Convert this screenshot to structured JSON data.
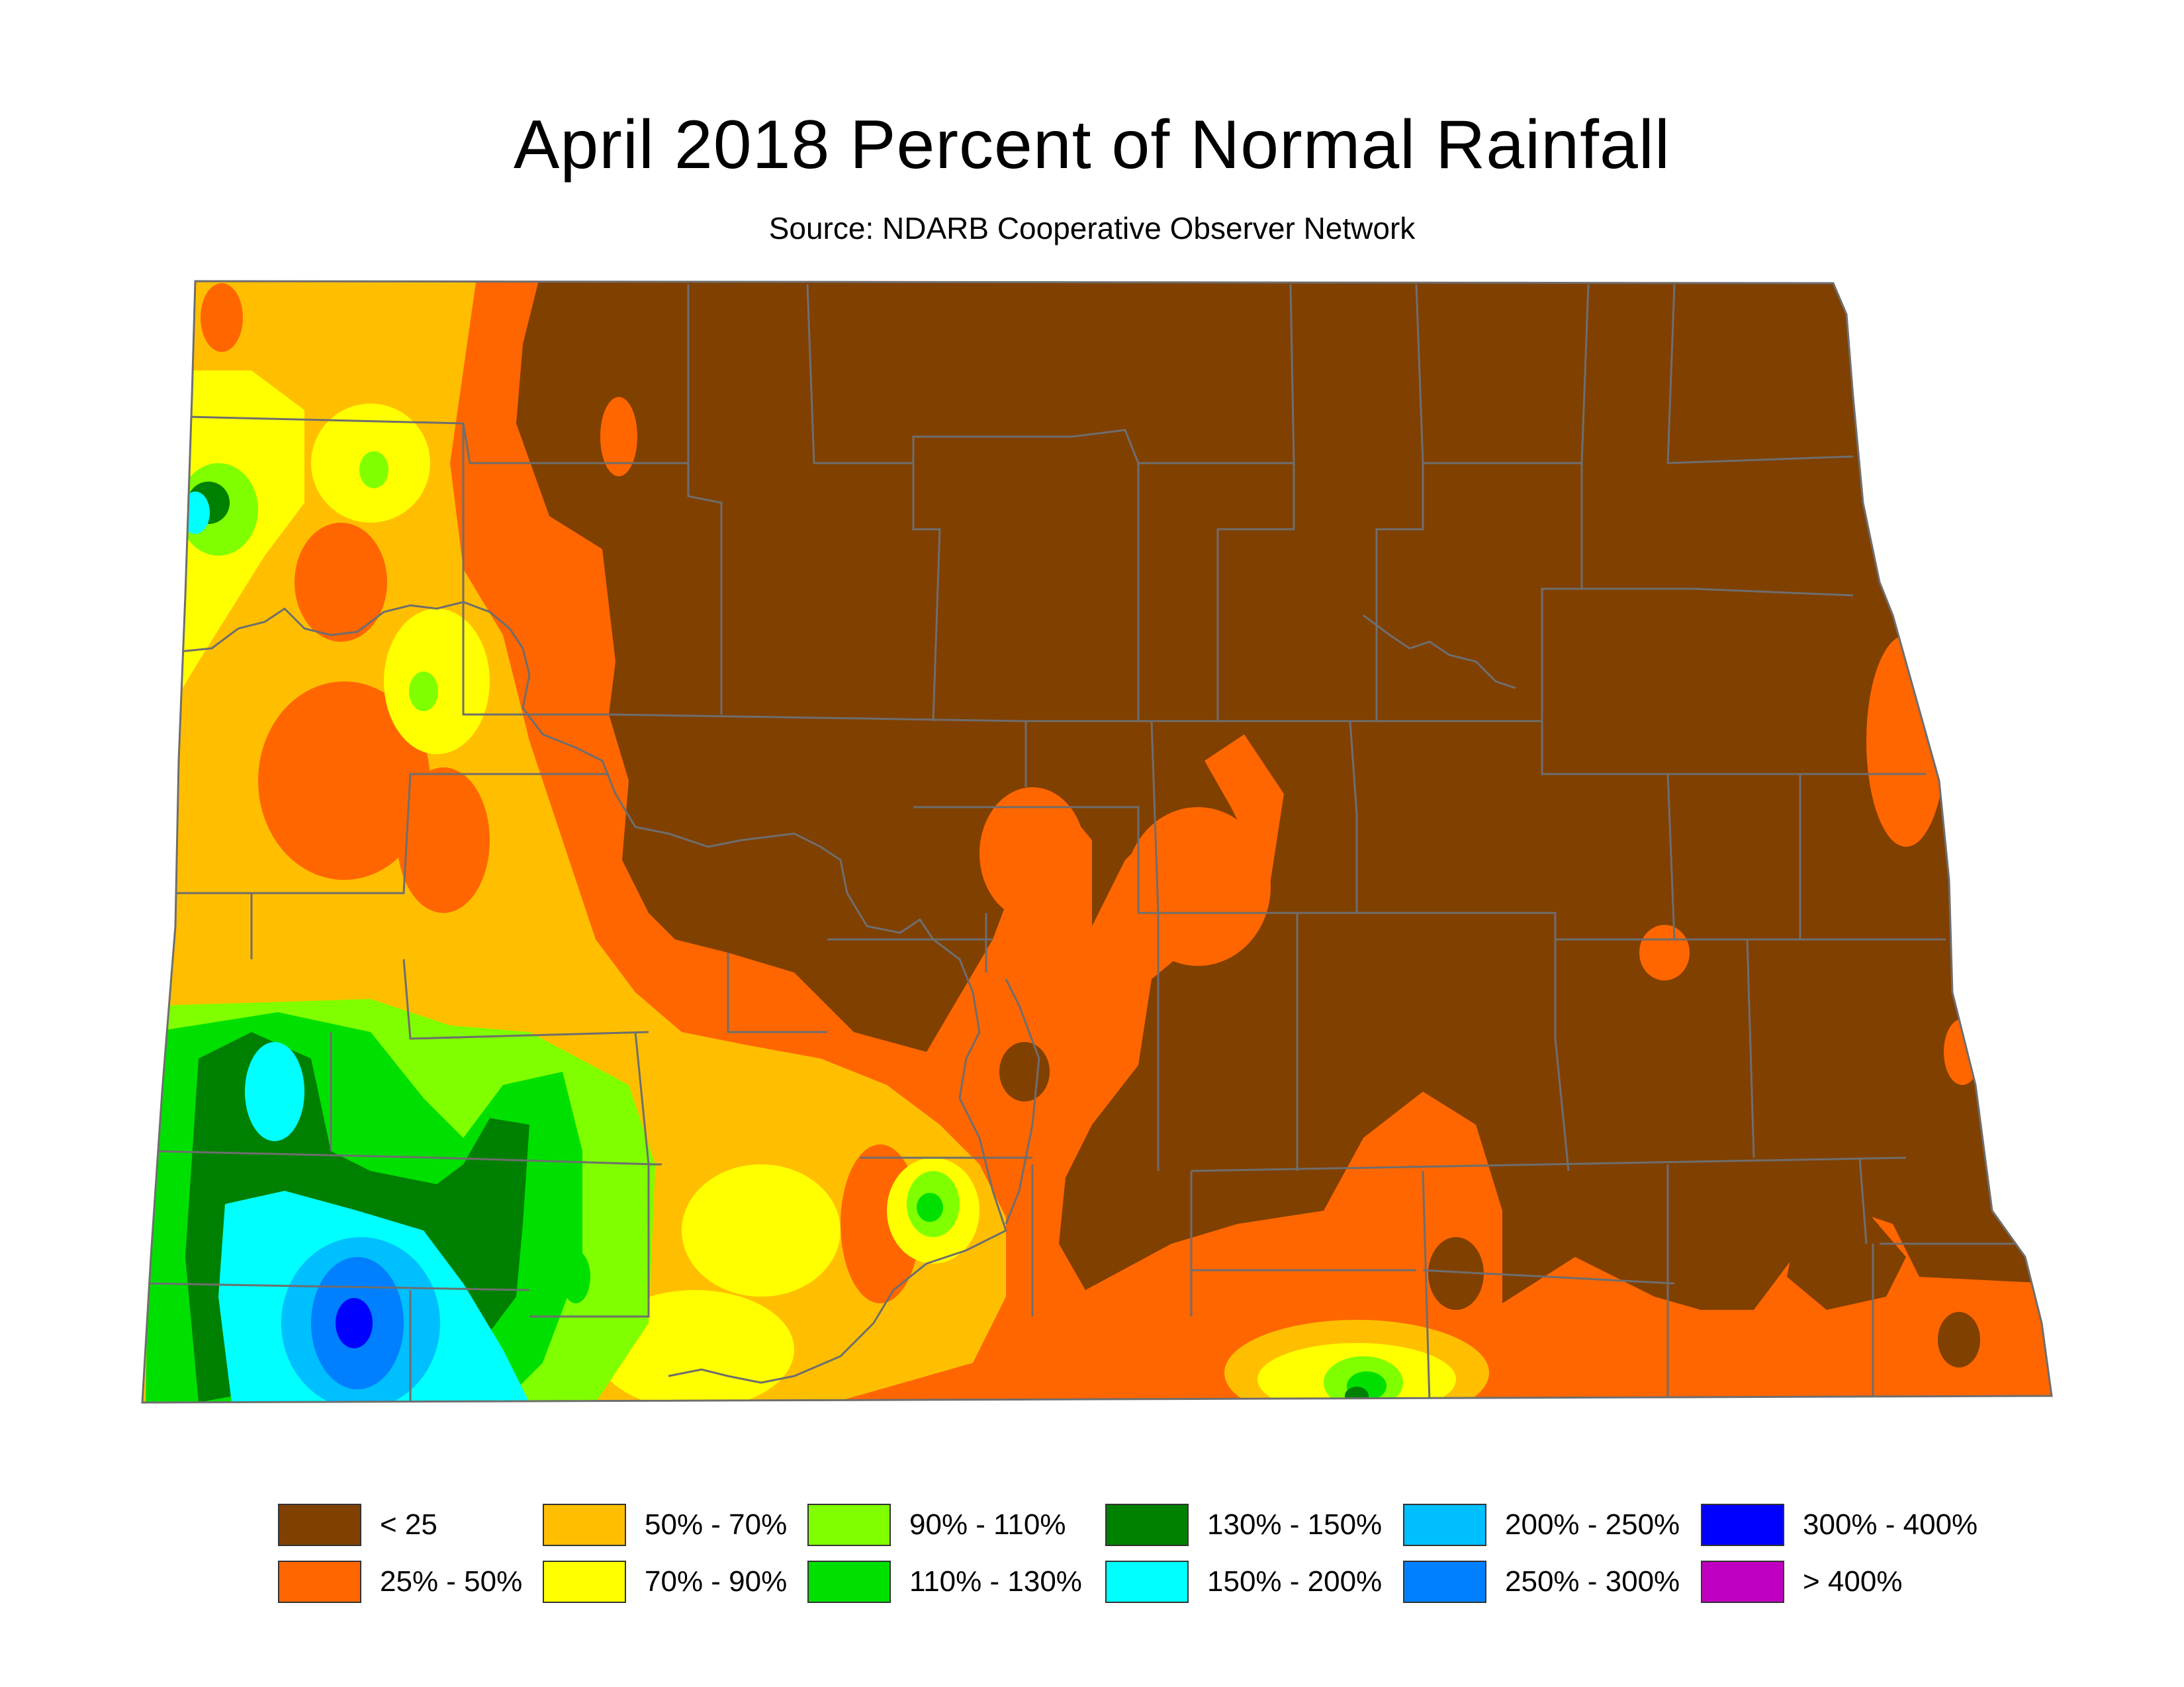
{
  "title": "April 2018 Percent of Normal Rainfall",
  "subtitle": "Source: NDARB Cooperative Observer Network",
  "colors": {
    "lt25": "#804000",
    "c25_50": "#ff6600",
    "c50_70": "#ffbf00",
    "c70_90": "#ffff00",
    "c90_110": "#80ff00",
    "c110_130": "#00e000",
    "c130_150": "#008000",
    "c150_200": "#00ffff",
    "c200_250": "#00bfff",
    "c250_300": "#0080ff",
    "c300_400": "#0000ff",
    "gt400": "#c000c0",
    "boundary": "#6e6e6e"
  },
  "legend": [
    {
      "label": "< 25",
      "color": "#804000"
    },
    {
      "label": "25% - 50%",
      "color": "#ff6600"
    },
    {
      "label": "50% - 70%",
      "color": "#ffbf00"
    },
    {
      "label": "70% - 90%",
      "color": "#ffff00"
    },
    {
      "label": "90% - 110%",
      "color": "#80ff00"
    },
    {
      "label": "110% - 130%",
      "color": "#00e000"
    },
    {
      "label": "130% - 150%",
      "color": "#008000"
    },
    {
      "label": "150% - 200%",
      "color": "#00ffff"
    },
    {
      "label": "200% - 250%",
      "color": "#00bfff"
    },
    {
      "label": "250% - 300%",
      "color": "#0080ff"
    },
    {
      "label": "300% - 400%",
      "color": "#0000ff"
    },
    {
      "label": "> 400%",
      "color": "#c000c0"
    }
  ]
}
